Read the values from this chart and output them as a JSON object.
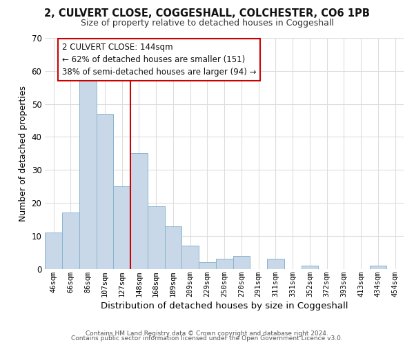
{
  "title": "2, CULVERT CLOSE, COGGESHALL, COLCHESTER, CO6 1PB",
  "subtitle": "Size of property relative to detached houses in Coggeshall",
  "xlabel": "Distribution of detached houses by size in Coggeshall",
  "ylabel": "Number of detached properties",
  "bar_labels": [
    "46sqm",
    "66sqm",
    "86sqm",
    "107sqm",
    "127sqm",
    "148sqm",
    "168sqm",
    "189sqm",
    "209sqm",
    "229sqm",
    "250sqm",
    "270sqm",
    "291sqm",
    "311sqm",
    "331sqm",
    "352sqm",
    "372sqm",
    "393sqm",
    "413sqm",
    "434sqm",
    "454sqm"
  ],
  "bar_values": [
    11,
    17,
    57,
    47,
    25,
    35,
    19,
    13,
    7,
    2,
    3,
    4,
    0,
    3,
    0,
    1,
    0,
    0,
    0,
    1,
    0
  ],
  "bar_color": "#c8d8e8",
  "bar_edge_color": "#8ab4cc",
  "vline_index": 5,
  "vline_color": "#cc0000",
  "ylim": [
    0,
    70
  ],
  "yticks": [
    0,
    10,
    20,
    30,
    40,
    50,
    60,
    70
  ],
  "annotation_title": "2 CULVERT CLOSE: 144sqm",
  "annotation_line1": "← 62% of detached houses are smaller (151)",
  "annotation_line2": "38% of semi-detached houses are larger (94) →",
  "annotation_box_color": "#ffffff",
  "annotation_box_edge": "#cc0000",
  "footer1": "Contains HM Land Registry data © Crown copyright and database right 2024.",
  "footer2": "Contains public sector information licensed under the Open Government Licence v3.0.",
  "background_color": "#ffffff",
  "grid_color": "#dddddd"
}
